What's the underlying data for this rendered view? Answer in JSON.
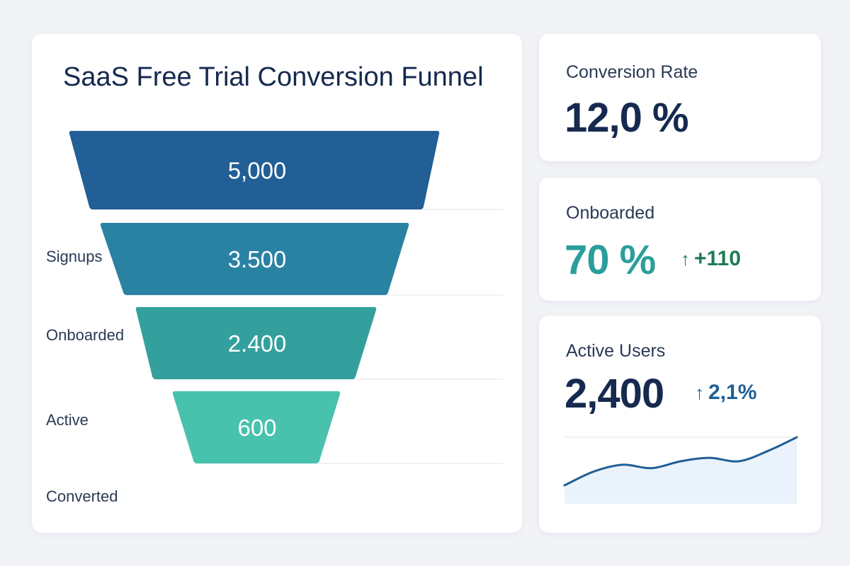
{
  "chart_data": {
    "type": "funnel",
    "title": "SaaS Free Trial Conversion Funnel",
    "stages": [
      {
        "value_label": "5,000",
        "value": 5000,
        "color": "#215f96",
        "label": ""
      },
      {
        "value_label": "3.500",
        "value": 3500,
        "color": "#2a82a3",
        "label": "Signups"
      },
      {
        "value_label": "2.400",
        "value": 2400,
        "color": "#33a09e",
        "label": "Onboarded"
      },
      {
        "value_label": "600",
        "value": 600,
        "color": "#48c1ad",
        "label": "Active"
      }
    ],
    "trailing_label": "Converted"
  },
  "kpis": {
    "conversion": {
      "label": "Conversion Rate",
      "value": "12,0 %",
      "color": "#16294f"
    },
    "onboarded": {
      "label": "Onboarded",
      "value": "70 %",
      "delta": "+110",
      "value_color": "#2b9e9b",
      "delta_color": "#1f7a55"
    },
    "active": {
      "label": "Active Users",
      "value": "2,400",
      "delta": "2,1%",
      "value_color": "#16294f",
      "delta_color": "#215f96",
      "sparkline": {
        "values": [
          2,
          4,
          5,
          4.5,
          5.5,
          6,
          5.5,
          7,
          9
        ],
        "line_color": "#215f96",
        "fill_color": "#eaf3fb"
      }
    }
  },
  "icons": {
    "delta": "arrow-up-icon"
  }
}
